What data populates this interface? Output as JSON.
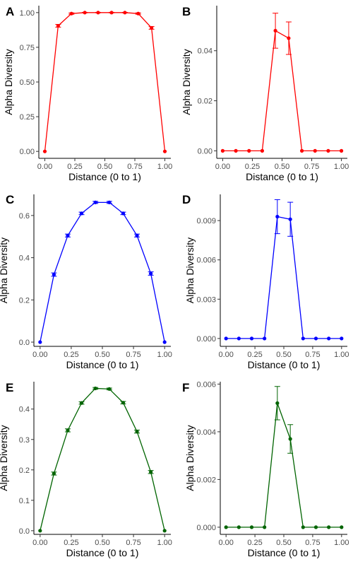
{
  "chart_data": [
    {
      "type": "line",
      "panel_label": "A",
      "color": "#ff0000",
      "xlabel": "Distance (0 to 1)",
      "ylabel": "Alpha Diversity",
      "xlim": [
        0,
        1
      ],
      "ylim": [
        -0.05,
        1.05
      ],
      "xticks": [
        "0.00",
        "0.25",
        "0.50",
        "0.75",
        "1.00"
      ],
      "yticks": [
        "0.00",
        "0.25",
        "0.50",
        "0.75",
        "1.00"
      ],
      "grid": false,
      "series": [
        {
          "x": [
            0.0,
            0.111,
            0.222,
            0.333,
            0.444,
            0.556,
            0.667,
            0.778,
            0.889,
            1.0
          ],
          "y": [
            0.0,
            0.905,
            0.993,
            1.0,
            1.0,
            1.0,
            1.0,
            0.993,
            0.89,
            0.0
          ],
          "err": [
            0,
            0.01,
            0.005,
            0.002,
            0.002,
            0.002,
            0.002,
            0.005,
            0.01,
            0
          ]
        }
      ]
    },
    {
      "type": "line",
      "panel_label": "B",
      "color": "#ff0000",
      "xlabel": "Distance (0 to 1)",
      "ylabel": "Alpha Diversity",
      "xlim": [
        0,
        1
      ],
      "ylim": [
        -0.003,
        0.058
      ],
      "xticks": [
        "0.00",
        "0.25",
        "0.50",
        "0.75",
        "1.00"
      ],
      "yticks": [
        "0.00",
        "0.02",
        "0.04"
      ],
      "grid": false,
      "series": [
        {
          "x": [
            0.0,
            0.111,
            0.222,
            0.333,
            0.444,
            0.556,
            0.667,
            0.778,
            0.889,
            1.0
          ],
          "y": [
            0.0,
            0.0,
            0.0,
            0.0,
            0.048,
            0.045,
            0.0,
            0.0,
            0.0,
            0.0
          ],
          "err": [
            0,
            0,
            0,
            0,
            0.007,
            0.0065,
            0,
            0,
            0,
            0
          ]
        }
      ]
    },
    {
      "type": "line",
      "panel_label": "C",
      "color": "#0000ff",
      "xlabel": "Distance (0 to 1)",
      "ylabel": "Alpha Diversity",
      "xlim": [
        0,
        1
      ],
      "ylim": [
        -0.02,
        0.7
      ],
      "xticks": [
        "0.00",
        "0.25",
        "0.50",
        "0.75",
        "1.00"
      ],
      "yticks": [
        "0.0",
        "0.2",
        "0.4",
        "0.6"
      ],
      "grid": false,
      "series": [
        {
          "x": [
            0.0,
            0.111,
            0.222,
            0.333,
            0.444,
            0.556,
            0.667,
            0.778,
            0.889,
            1.0
          ],
          "y": [
            0.0,
            0.32,
            0.505,
            0.61,
            0.662,
            0.662,
            0.61,
            0.505,
            0.325,
            0.0
          ],
          "err": [
            0,
            0.008,
            0.007,
            0.006,
            0.005,
            0.005,
            0.006,
            0.007,
            0.008,
            0
          ]
        }
      ]
    },
    {
      "type": "line",
      "panel_label": "D",
      "color": "#0000ff",
      "xlabel": "Distance (0 to 1)",
      "ylabel": "Alpha Diversity",
      "xlim": [
        0,
        1
      ],
      "ylim": [
        -0.0006,
        0.011
      ],
      "xticks": [
        "0.00",
        "0.25",
        "0.50",
        "0.75",
        "1.00"
      ],
      "yticks": [
        "0.000",
        "0.003",
        "0.006",
        "0.009"
      ],
      "grid": false,
      "series": [
        {
          "x": [
            0.0,
            0.111,
            0.222,
            0.333,
            0.444,
            0.556,
            0.667,
            0.778,
            0.889,
            1.0
          ],
          "y": [
            0.0,
            0.0,
            0.0,
            0.0,
            0.0093,
            0.0091,
            0.0,
            0.0,
            0.0,
            0.0
          ],
          "err": [
            0,
            0,
            0,
            0,
            0.0013,
            0.0013,
            0,
            0,
            0,
            0
          ]
        }
      ]
    },
    {
      "type": "line",
      "panel_label": "E",
      "color": "#006400",
      "xlabel": "Distance (0 to 1)",
      "ylabel": "Alpha Diversity",
      "xlim": [
        0,
        1
      ],
      "ylim": [
        -0.012,
        0.49
      ],
      "xticks": [
        "0.00",
        "0.25",
        "0.50",
        "0.75",
        "1.00"
      ],
      "yticks": [
        "0.0",
        "0.1",
        "0.2",
        "0.3",
        "0.4"
      ],
      "grid": false,
      "series": [
        {
          "x": [
            0.0,
            0.111,
            0.222,
            0.333,
            0.444,
            0.556,
            0.667,
            0.778,
            0.889,
            1.0
          ],
          "y": [
            0.0,
            0.188,
            0.33,
            0.42,
            0.468,
            0.466,
            0.421,
            0.326,
            0.193,
            0.0
          ],
          "err": [
            0,
            0.005,
            0.005,
            0.004,
            0.003,
            0.003,
            0.004,
            0.005,
            0.005,
            0
          ]
        }
      ]
    },
    {
      "type": "line",
      "panel_label": "F",
      "color": "#006400",
      "xlabel": "Distance (0 to 1)",
      "ylabel": "Alpha Diversity",
      "xlim": [
        0,
        1
      ],
      "ylim": [
        -0.0003,
        0.0061
      ],
      "xticks": [
        "0.00",
        "0.25",
        "0.50",
        "0.75",
        "1.00"
      ],
      "yticks": [
        "0.000",
        "0.002",
        "0.004",
        "0.006"
      ],
      "grid": false,
      "series": [
        {
          "x": [
            0.0,
            0.111,
            0.222,
            0.333,
            0.444,
            0.556,
            0.667,
            0.778,
            0.889,
            1.0
          ],
          "y": [
            0.0,
            0.0,
            0.0,
            0.0,
            0.0052,
            0.0037,
            0.0,
            0.0,
            0.0,
            0.0
          ],
          "err": [
            0,
            0,
            0,
            0,
            0.0007,
            0.0006,
            0,
            0,
            0,
            0
          ]
        }
      ]
    }
  ]
}
